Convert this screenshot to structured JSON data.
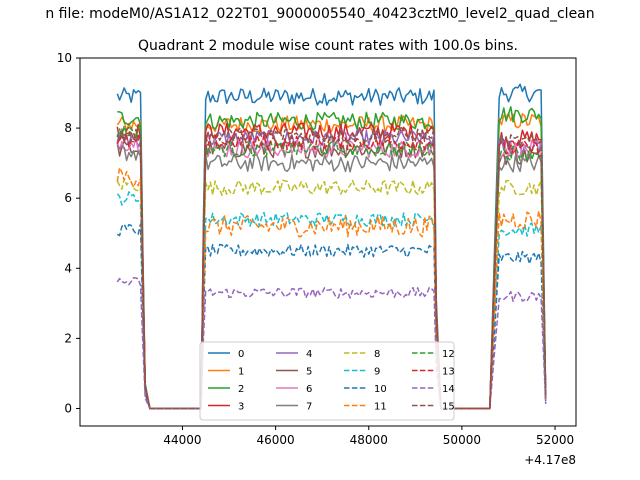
{
  "figure": {
    "suptitle": "n file: modeM0/AS1A12_022T01_9000005540_40423cztM0_level2_quad_clean"
  },
  "chart_data": {
    "type": "line",
    "title": "Quadrant 2 module wise count rates with 100.0s bins.",
    "xlabel": "",
    "ylabel": "",
    "x_offset_label": "+4.17e8",
    "xlim": [
      41800,
      52450
    ],
    "ylim": [
      -0.5,
      10
    ],
    "x_ticks": [
      44000,
      46000,
      48000,
      50000,
      52000
    ],
    "y_ticks": [
      0,
      2,
      4,
      6,
      8,
      10
    ],
    "legend": {
      "placement": "lower-center",
      "columns": 4
    },
    "grid": false,
    "segments": [
      {
        "start": 42600,
        "end": 43100
      },
      {
        "start": 44500,
        "end": 49400
      },
      {
        "start": 50800,
        "end": 51700
      }
    ],
    "transitions": [
      {
        "drop_start": 43100,
        "drop_end": 43300,
        "rise_start": 44400,
        "rise_end": 44500
      },
      {
        "drop_start": 49400,
        "drop_end": 49550,
        "rise_start": 50600,
        "rise_end": 50800
      },
      {
        "drop_start": 51700,
        "drop_end": 51800
      }
    ],
    "series": [
      {
        "name": "0",
        "color": "#1f77b4",
        "dash": "solid",
        "levels": [
          8.9,
          8.9,
          9.0
        ],
        "amplitude": 0.25
      },
      {
        "name": "1",
        "color": "#ff7f0e",
        "dash": "solid",
        "levels": [
          8.1,
          8.1,
          8.2
        ],
        "amplitude": 0.25
      },
      {
        "name": "2",
        "color": "#2ca02c",
        "dash": "solid",
        "levels": [
          8.3,
          8.2,
          8.4
        ],
        "amplitude": 0.25
      },
      {
        "name": "3",
        "color": "#d62728",
        "dash": "solid",
        "levels": [
          7.9,
          7.9,
          7.7
        ],
        "amplitude": 0.25
      },
      {
        "name": "4",
        "color": "#9467bd",
        "dash": "solid",
        "levels": [
          7.7,
          7.7,
          7.5
        ],
        "amplitude": 0.25
      },
      {
        "name": "5",
        "color": "#8c564b",
        "dash": "solid",
        "levels": [
          7.4,
          7.4,
          7.2
        ],
        "amplitude": 0.25
      },
      {
        "name": "6",
        "color": "#e377c2",
        "dash": "solid",
        "levels": [
          7.6,
          7.4,
          7.4
        ],
        "amplitude": 0.25
      },
      {
        "name": "7",
        "color": "#7f7f7f",
        "dash": "solid",
        "levels": [
          7.3,
          7.0,
          7.0
        ],
        "amplitude": 0.25
      },
      {
        "name": "8",
        "color": "#bcbd22",
        "dash": "dashed",
        "levels": [
          6.4,
          6.3,
          6.3
        ],
        "amplitude": 0.22
      },
      {
        "name": "9",
        "color": "#17becf",
        "dash": "dashed",
        "levels": [
          6.0,
          5.4,
          5.1
        ],
        "amplitude": 0.2
      },
      {
        "name": "10",
        "color": "#1f77b4",
        "dash": "dashed",
        "levels": [
          5.1,
          4.5,
          4.3
        ],
        "amplitude": 0.18
      },
      {
        "name": "11",
        "color": "#ff7f0e",
        "dash": "dashed",
        "levels": [
          6.6,
          5.2,
          5.4
        ],
        "amplitude": 0.3
      },
      {
        "name": "12",
        "color": "#2ca02c",
        "dash": "dashed",
        "levels": [
          7.9,
          7.4,
          7.3
        ],
        "amplitude": 0.22
      },
      {
        "name": "13",
        "color": "#d62728",
        "dash": "dashed",
        "levels": [
          7.6,
          7.6,
          7.4
        ],
        "amplitude": 0.22
      },
      {
        "name": "14",
        "color": "#9467bd",
        "dash": "dashed",
        "levels": [
          3.6,
          3.3,
          3.2
        ],
        "amplitude": 0.15
      },
      {
        "name": "15",
        "color": "#8c564b",
        "dash": "dashed",
        "levels": [
          7.8,
          7.8,
          7.6
        ],
        "amplitude": 0.22
      }
    ]
  }
}
